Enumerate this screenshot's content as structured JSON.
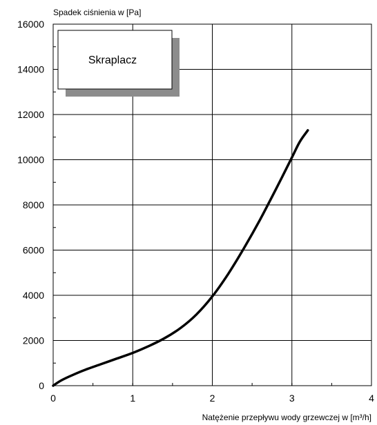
{
  "chart_data": {
    "type": "line",
    "ylabel": "Spadek ciśnienia w [Pa]",
    "xlabel": "Natężenie przepływu wody grzewczej w [m³/h]",
    "xlim": [
      0,
      4
    ],
    "ylim": [
      0,
      16000
    ],
    "x_ticks": [
      0,
      1,
      2,
      3,
      4
    ],
    "y_ticks": [
      0,
      2000,
      4000,
      6000,
      8000,
      10000,
      12000,
      14000,
      16000
    ],
    "x_tick_labels": [
      "0",
      "1",
      "2",
      "3",
      "4"
    ],
    "y_tick_labels": [
      "0",
      "2000",
      "4000",
      "6000",
      "8000",
      "10000",
      "12000",
      "14000",
      "16000"
    ],
    "grid": true,
    "annotation": "Skraplacz",
    "series": [
      {
        "color": "#000000",
        "x": [
          0,
          0.1,
          0.25,
          0.4,
          0.6,
          0.8,
          1.0,
          1.2,
          1.4,
          1.6,
          1.8,
          2.0,
          2.2,
          2.4,
          2.6,
          2.8,
          3.0,
          3.1,
          3.2
        ],
        "y": [
          0,
          230,
          480,
          700,
          950,
          1200,
          1450,
          1750,
          2100,
          2550,
          3150,
          3950,
          4950,
          6100,
          7350,
          8700,
          10100,
          10800,
          11300
        ]
      }
    ]
  }
}
